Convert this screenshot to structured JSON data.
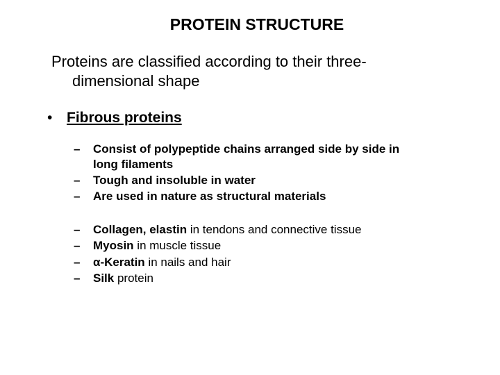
{
  "title": "PROTEIN STRUCTURE",
  "intro_line1": "Proteins are classified according to their three-",
  "intro_line2": "dimensional shape",
  "subheading": "Fibrous proteins",
  "group1": {
    "i0_a": "Consist of polypeptide chains arranged side by side in",
    "i0_b": "long filaments",
    "i1": "Tough and insoluble in water",
    "i2": " Are used in nature as structural materials"
  },
  "group2": {
    "i0_bold": "Collagen, elastin",
    "i0_rest": "  in tendons and connective tissue",
    "i1_bold": "Myosin",
    "i1_rest": " in muscle tissue",
    "i2_bold": "α-Keratin",
    "i2_rest": " in nails and hair",
    "i3_bold": "Silk",
    "i3_rest": " protein"
  },
  "colors": {
    "text": "#000000",
    "background": "#ffffff"
  },
  "fonts": {
    "title_size_pt": 17,
    "intro_size_pt": 16,
    "sub_size_pt": 13
  }
}
